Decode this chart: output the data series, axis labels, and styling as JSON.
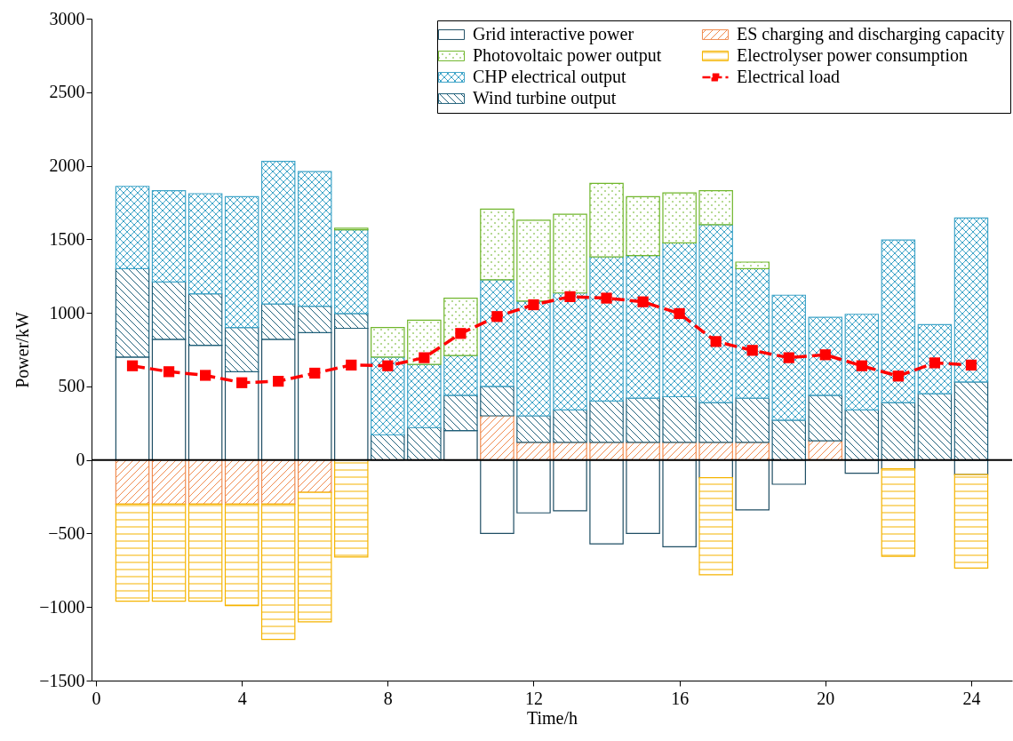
{
  "chart_data": {
    "type": "bar",
    "stacked": true,
    "xlabel": "Time/h",
    "ylabel": "Power/kW",
    "x": [
      1,
      2,
      3,
      4,
      5,
      6,
      7,
      8,
      9,
      10,
      11,
      12,
      13,
      14,
      15,
      16,
      17,
      18,
      19,
      20,
      21,
      22,
      23,
      24
    ],
    "xlim": [
      0,
      25
    ],
    "xticks": [
      0,
      4,
      8,
      12,
      16,
      20,
      24
    ],
    "ylim": [
      -1500,
      3000
    ],
    "yticks": [
      -1500,
      -1000,
      -500,
      0,
      500,
      1000,
      1500,
      2000,
      2500,
      3000
    ],
    "series": [
      {
        "name": "Grid interactive power",
        "color": "#1f4e64",
        "values": [
          700,
          820,
          780,
          600,
          820,
          865,
          895,
          null,
          null,
          200,
          -500,
          -360,
          -345,
          -570,
          -500,
          -590,
          -120,
          -340,
          -165,
          null,
          -90,
          -60,
          null,
          -100
        ]
      },
      {
        "name": "ES charging and discharging capacity",
        "color": "#f08c50",
        "values": [
          -300,
          -300,
          -300,
          -300,
          -300,
          -220,
          null,
          null,
          null,
          null,
          300,
          120,
          120,
          120,
          120,
          120,
          120,
          120,
          null,
          130,
          null,
          null,
          null,
          null
        ]
      },
      {
        "name": "Wind turbine output",
        "color": "#20607a",
        "values": [
          600,
          390,
          350,
          300,
          240,
          180,
          100,
          170,
          220,
          240,
          200,
          180,
          220,
          280,
          300,
          310,
          270,
          300,
          270,
          310,
          340,
          390,
          450,
          530
        ]
      },
      {
        "name": "CHP electrical output",
        "color": "#3ea4c8",
        "values": [
          560,
          620,
          680,
          890,
          970,
          915,
          570,
          530,
          430,
          270,
          725,
          780,
          795,
          980,
          970,
          1045,
          1210,
          880,
          850,
          530,
          650,
          1105,
          470,
          1115
        ]
      },
      {
        "name": "Photovoltaic power output",
        "color": "#70b62c",
        "values": [
          null,
          null,
          null,
          null,
          null,
          null,
          10,
          200,
          300,
          390,
          480,
          550,
          535,
          500,
          400,
          340,
          230,
          45,
          null,
          null,
          null,
          null,
          null,
          null
        ]
      },
      {
        "name": "Electrolyser power consumption",
        "color": "#f5b400",
        "values": [
          -660,
          -660,
          -660,
          -690,
          -920,
          -880,
          -660,
          null,
          null,
          null,
          null,
          null,
          null,
          null,
          null,
          null,
          -660,
          null,
          null,
          null,
          null,
          -595,
          null,
          -635
        ]
      },
      {
        "name": "Electrical load",
        "type": "line",
        "color": "#ff0000",
        "marker": "square",
        "line_style": "dashed",
        "values": [
          640,
          600,
          575,
          525,
          535,
          590,
          645,
          640,
          695,
          860,
          975,
          1055,
          1110,
          1100,
          1075,
          995,
          805,
          745,
          695,
          715,
          640,
          570,
          660,
          645
        ]
      }
    ],
    "ref_lines": [
      {
        "axis": "y",
        "value": 0,
        "color": "#000000"
      }
    ],
    "legend": "top right"
  }
}
